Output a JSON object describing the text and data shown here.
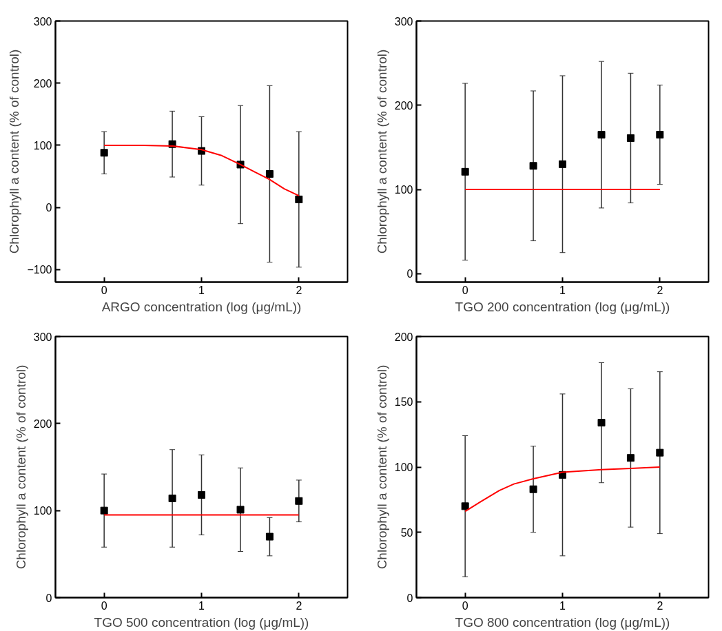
{
  "chart_data": [
    {
      "type": "scatter",
      "xlabel": "ARGO concentration (log (μg/mL))",
      "ylabel": "Chlorophyll a content (% of control)",
      "xlim": [
        -0.5,
        2.5
      ],
      "xticks": [
        0,
        1,
        2
      ],
      "ylim": [
        -120,
        300
      ],
      "yticks": [
        -100,
        0,
        100,
        200,
        300
      ],
      "series": [
        {
          "color": "#000000",
          "marker": "square",
          "x": [
            0,
            0.7,
            1,
            1.4,
            1.7,
            2
          ],
          "values": [
            88,
            102,
            91,
            69,
            54,
            13
          ],
          "errors": [
            34,
            53,
            55,
            95,
            142,
            109
          ]
        },
        {
          "type": "line",
          "marker": "none",
          "color": "#ff0000",
          "x": [
            0,
            0.4,
            0.7,
            1,
            1.2,
            1.4,
            1.55,
            1.7,
            1.85,
            2
          ],
          "values": [
            100,
            100,
            99,
            93,
            84,
            69,
            57,
            45,
            30,
            19
          ]
        }
      ]
    },
    {
      "type": "scatter",
      "xlabel": "TGO 200 concentration (log (μg/mL))",
      "ylabel": "Chlorophyll a content (% of control)",
      "xlim": [
        -0.5,
        2.5
      ],
      "xticks": [
        0,
        1,
        2
      ],
      "ylim": [
        -10,
        300
      ],
      "yticks": [
        0,
        100,
        200,
        300
      ],
      "series": [
        {
          "color": "#000000",
          "marker": "square",
          "x": [
            0,
            0.7,
            1,
            1.4,
            1.7,
            2
          ],
          "values": [
            121,
            128,
            130,
            165,
            161,
            165
          ],
          "errors": [
            105,
            89,
            105,
            87,
            77,
            59
          ]
        },
        {
          "type": "line",
          "marker": "none",
          "color": "#ff0000",
          "x": [
            0,
            2
          ],
          "values": [
            100,
            100
          ]
        }
      ]
    },
    {
      "type": "scatter",
      "xlabel": "TGO 500 concentration (log (μg/mL))",
      "ylabel": "Chlorophyll a content (% of control)",
      "xlim": [
        -0.5,
        2.5
      ],
      "xticks": [
        0,
        1,
        2
      ],
      "ylim": [
        0,
        300
      ],
      "yticks": [
        0,
        100,
        200,
        300
      ],
      "series": [
        {
          "color": "#000000",
          "marker": "square",
          "x": [
            0,
            0.7,
            1,
            1.4,
            1.7,
            2
          ],
          "values": [
            100,
            114,
            118,
            101,
            70,
            111
          ],
          "errors": [
            42,
            56,
            46,
            48,
            22,
            24
          ]
        },
        {
          "type": "line",
          "marker": "none",
          "color": "#ff0000",
          "x": [
            0,
            2
          ],
          "values": [
            95,
            95
          ]
        }
      ]
    },
    {
      "type": "scatter",
      "xlabel": "TGO 800 concentration (log (μg/mL))",
      "ylabel": "Chlorophyll a content (% of control)",
      "xlim": [
        -0.5,
        2.5
      ],
      "xticks": [
        0,
        1,
        2
      ],
      "ylim": [
        0,
        200
      ],
      "yticks": [
        0,
        50,
        100,
        150,
        200
      ],
      "series": [
        {
          "color": "#000000",
          "marker": "square",
          "x": [
            0,
            0.7,
            1,
            1.4,
            1.7,
            2
          ],
          "values": [
            70,
            83,
            94,
            134,
            107,
            111
          ],
          "errors": [
            54,
            33,
            62,
            46,
            53,
            62
          ]
        },
        {
          "type": "line",
          "marker": "none",
          "color": "#ff0000",
          "x": [
            0,
            0.15,
            0.35,
            0.5,
            0.7,
            1,
            1.4,
            1.7,
            2
          ],
          "values": [
            66,
            73,
            82,
            87,
            91,
            96,
            98,
            99,
            100
          ]
        }
      ]
    }
  ]
}
